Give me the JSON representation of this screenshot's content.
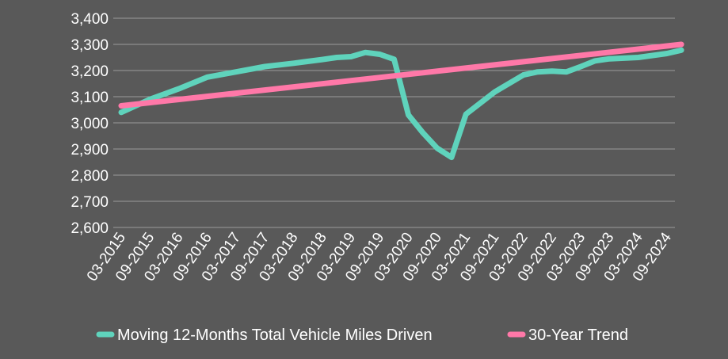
{
  "chart_data": {
    "type": "line",
    "title": "",
    "xlabel": "",
    "ylabel": "",
    "ylim": [
      2600,
      3400
    ],
    "yticks": [
      2600,
      2700,
      2800,
      2900,
      3000,
      3100,
      3200,
      3300,
      3400
    ],
    "ytick_labels": [
      "2,600",
      "2,700",
      "2,800",
      "2,900",
      "3,000",
      "3,100",
      "3,200",
      "3,300",
      "3,400"
    ],
    "categories": [
      "03-2015",
      "09-2015",
      "03-2016",
      "09-2016",
      "03-2017",
      "09-2017",
      "03-2018",
      "09-2018",
      "03-2019",
      "09-2019",
      "03-2020",
      "09-2020",
      "03-2021",
      "09-2021",
      "03-2022",
      "09-2022",
      "03-2023",
      "09-2023",
      "03-2024",
      "09-2024"
    ],
    "grid": true,
    "legend_position": "bottom",
    "series": [
      {
        "name": "Moving 12-Months Total Vehicle Miles Driven",
        "color": "#5fd3bc",
        "points": [
          {
            "x": "03-2015",
            "y": 3040
          },
          {
            "x": "09-2015",
            "y": 3090
          },
          {
            "x": "03-2016",
            "y": 3130
          },
          {
            "x": "09-2016",
            "y": 3175
          },
          {
            "x": "03-2017",
            "y": 3195
          },
          {
            "x": "09-2017",
            "y": 3215
          },
          {
            "x": "03-2018",
            "y": 3228
          },
          {
            "x": "09-2018",
            "y": 3242
          },
          {
            "x": "12-2018",
            "y": 3250
          },
          {
            "x": "03-2019",
            "y": 3253
          },
          {
            "x": "06-2019",
            "y": 3269
          },
          {
            "x": "09-2019",
            "y": 3262
          },
          {
            "x": "12-2019",
            "y": 3243
          },
          {
            "x": "03-2020",
            "y": 3030
          },
          {
            "x": "06-2020",
            "y": 2962
          },
          {
            "x": "09-2020",
            "y": 2903
          },
          {
            "x": "12-2020",
            "y": 2868
          },
          {
            "x": "03-2021",
            "y": 3033
          },
          {
            "x": "09-2021",
            "y": 3118
          },
          {
            "x": "03-2022",
            "y": 3183
          },
          {
            "x": "06-2022",
            "y": 3195
          },
          {
            "x": "09-2022",
            "y": 3198
          },
          {
            "x": "12-2022",
            "y": 3195
          },
          {
            "x": "03-2023",
            "y": 3215
          },
          {
            "x": "06-2023",
            "y": 3237
          },
          {
            "x": "09-2023",
            "y": 3245
          },
          {
            "x": "03-2024",
            "y": 3250
          },
          {
            "x": "09-2024",
            "y": 3265
          },
          {
            "x": "12-2024",
            "y": 3278
          }
        ]
      },
      {
        "name": "30-Year Trend",
        "color": "#ff78a8",
        "points": [
          {
            "x": "03-2015",
            "y": 3065
          },
          {
            "x": "12-2024",
            "y": 3300
          }
        ]
      }
    ]
  }
}
